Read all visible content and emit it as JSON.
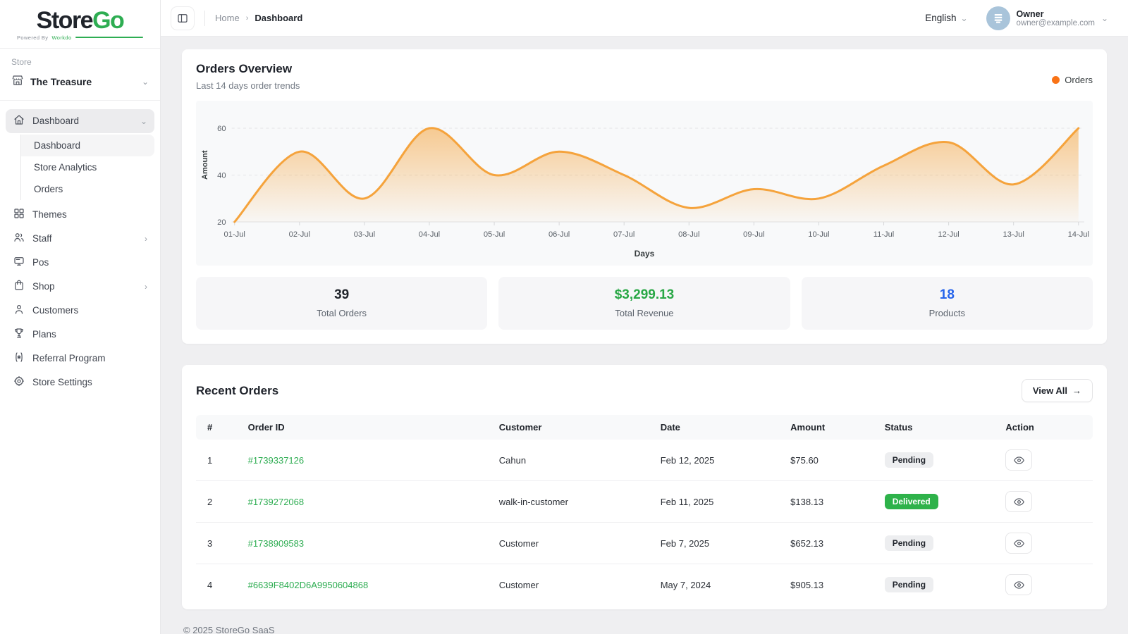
{
  "brand": {
    "name_primary": "Store",
    "name_secondary": "Go",
    "powered_by": "Powered By",
    "powered_brand": "Workdo"
  },
  "colors": {
    "brand_green": "#2ead52",
    "chart_line": "#f5a33c",
    "legend_dot": "#f97316",
    "revenue_green": "#28a745",
    "products_blue": "#2563eb",
    "delivered_bg": "#2eb24a"
  },
  "sidebar": {
    "section_label": "Store",
    "store_name": "The Treasure",
    "items": [
      {
        "label": "Dashboard",
        "children": [
          "Dashboard",
          "Store Analytics",
          "Orders"
        ]
      },
      {
        "label": "Themes"
      },
      {
        "label": "Staff"
      },
      {
        "label": "Pos"
      },
      {
        "label": "Shop"
      },
      {
        "label": "Customers"
      },
      {
        "label": "Plans"
      },
      {
        "label": "Referral Program"
      },
      {
        "label": "Store Settings"
      }
    ]
  },
  "topbar": {
    "breadcrumb_home": "Home",
    "breadcrumb_current": "Dashboard",
    "language": "English",
    "user_name": "Owner",
    "user_email": "owner@example.com"
  },
  "overview": {
    "title": "Orders Overview",
    "subtitle": "Last 14 days order trends",
    "legend_label": "Orders",
    "stats": [
      {
        "value": "39",
        "label": "Total Orders",
        "color": "#20242b"
      },
      {
        "value": "$3,299.13",
        "label": "Total Revenue",
        "color": "#28a745"
      },
      {
        "value": "18",
        "label": "Products",
        "color": "#2563eb"
      }
    ]
  },
  "chart_data": {
    "type": "area",
    "title": "Orders Overview",
    "categories": [
      "01-Jul",
      "02-Jul",
      "03-Jul",
      "04-Jul",
      "05-Jul",
      "06-Jul",
      "07-Jul",
      "08-Jul",
      "09-Jul",
      "10-Jul",
      "11-Jul",
      "12-Jul",
      "13-Jul",
      "14-Jul"
    ],
    "series": [
      {
        "name": "Orders",
        "values": [
          20,
          50,
          30,
          60,
          40,
          50,
          40,
          26,
          34,
          30,
          44,
          54,
          36,
          60
        ]
      }
    ],
    "xlabel": "Days",
    "ylabel": "Amount",
    "ylim": [
      20,
      60
    ],
    "yticks": [
      20,
      40,
      60
    ],
    "grid": true,
    "legend_position": "top-right",
    "line_color": "#f5a33c"
  },
  "recent_orders": {
    "title": "Recent Orders",
    "view_all_label": "View All",
    "columns": [
      "#",
      "Order ID",
      "Customer",
      "Date",
      "Amount",
      "Status",
      "Action"
    ],
    "rows": [
      {
        "num": "1",
        "order_id": "#1739337126",
        "customer": "Cahun",
        "date": "Feb 12, 2025",
        "amount": "$75.60",
        "status": "Pending",
        "status_variant": "pending"
      },
      {
        "num": "2",
        "order_id": "#1739272068",
        "customer": "walk-in-customer",
        "date": "Feb 11, 2025",
        "amount": "$138.13",
        "status": "Delivered",
        "status_variant": "delivered"
      },
      {
        "num": "3",
        "order_id": "#1738909583",
        "customer": "Customer",
        "date": "Feb 7, 2025",
        "amount": "$652.13",
        "status": "Pending",
        "status_variant": "pending"
      },
      {
        "num": "4",
        "order_id": "#6639F8402D6A9950604868",
        "customer": "Customer",
        "date": "May 7, 2024",
        "amount": "$905.13",
        "status": "Pending",
        "status_variant": "pending"
      }
    ]
  },
  "footer": {
    "copyright": "© 2025 StoreGo SaaS"
  }
}
